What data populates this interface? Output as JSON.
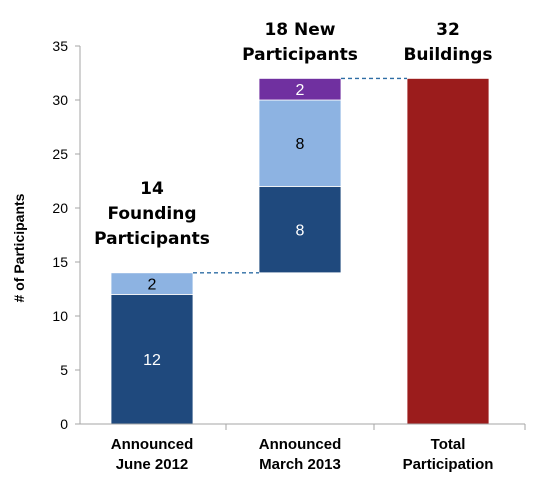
{
  "chart_data": {
    "type": "bar",
    "subtype": "stacked waterfall",
    "ylabel": "# of Participants",
    "ylim": [
      0,
      35
    ],
    "yticks": [
      0,
      5,
      10,
      15,
      20,
      25,
      30,
      35
    ],
    "grid": false,
    "categories": [
      [
        "Announced",
        "June 2012"
      ],
      [
        "Announced",
        "March 2013"
      ],
      [
        "Total",
        "Participation"
      ]
    ],
    "stacks": [
      {
        "base": 0,
        "segments": [
          {
            "value": 12,
            "color": "#1f497d",
            "label": "12",
            "label_color": "#ffffff"
          },
          {
            "value": 2,
            "color": "#8db3e2",
            "label": "2",
            "label_color": "#000000"
          }
        ]
      },
      {
        "base": 14,
        "segments": [
          {
            "value": 8,
            "color": "#1f497d",
            "label": "8",
            "label_color": "#ffffff"
          },
          {
            "value": 8,
            "color": "#8db3e2",
            "label": "8",
            "label_color": "#000000"
          },
          {
            "value": 2,
            "color": "#7030a0",
            "label": "2",
            "label_color": "#ffffff"
          }
        ]
      },
      {
        "base": 0,
        "segments": [
          {
            "value": 32,
            "color": "#9b1c1c",
            "label": "",
            "label_color": "#ffffff"
          }
        ]
      }
    ],
    "connectors": [
      {
        "from": 0,
        "to": 1,
        "value": 14
      },
      {
        "from": 1,
        "to": 2,
        "value": 32
      }
    ],
    "connector_color": "#2e6da4",
    "annotations": [
      {
        "bar": 0,
        "lines": [
          "14",
          "Founding",
          "Participants"
        ]
      },
      {
        "bar": 1,
        "lines": [
          "18 New",
          "Participants"
        ]
      },
      {
        "bar": 2,
        "lines": [
          "32",
          "Buildings"
        ]
      }
    ]
  }
}
